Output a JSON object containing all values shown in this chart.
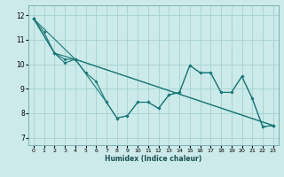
{
  "title": "",
  "xlabel": "Humidex (Indice chaleur)",
  "xlim": [
    -0.5,
    23.5
  ],
  "ylim": [
    6.7,
    12.4
  ],
  "xticks": [
    0,
    1,
    2,
    3,
    4,
    5,
    6,
    7,
    8,
    9,
    10,
    11,
    12,
    13,
    14,
    15,
    16,
    17,
    18,
    19,
    20,
    21,
    22,
    23
  ],
  "yticks": [
    7,
    8,
    9,
    10,
    11,
    12
  ],
  "bg_color": "#cceaea",
  "grid_color": "#aad4d4",
  "line_color": "#1a7878",
  "lines": [
    {
      "x": [
        0,
        1,
        2,
        3,
        4,
        5,
        6,
        7,
        8,
        9,
        10,
        11,
        12,
        13,
        14,
        15,
        16,
        17,
        18,
        19,
        20,
        21,
        22,
        23
      ],
      "y": [
        11.85,
        11.3,
        10.45,
        10.05,
        10.2,
        9.65,
        9.3,
        8.45,
        7.8,
        7.9,
        8.45,
        8.45,
        8.2,
        8.75,
        8.85,
        9.95,
        9.65,
        9.65,
        8.85,
        8.85,
        9.5,
        8.6,
        7.45,
        7.5
      ]
    },
    {
      "x": [
        0,
        2,
        3,
        4,
        7,
        8,
        9,
        10,
        11,
        12,
        13,
        14,
        15,
        16,
        17,
        18,
        19,
        20,
        21,
        22,
        23
      ],
      "y": [
        11.85,
        10.45,
        10.2,
        10.2,
        8.45,
        7.8,
        7.9,
        8.45,
        8.45,
        8.2,
        8.75,
        8.85,
        9.95,
        9.65,
        9.65,
        8.85,
        8.85,
        9.5,
        8.6,
        7.45,
        7.5
      ]
    },
    {
      "x": [
        0,
        2,
        4,
        23
      ],
      "y": [
        11.85,
        10.45,
        10.2,
        7.5
      ]
    },
    {
      "x": [
        0,
        4,
        23
      ],
      "y": [
        11.85,
        10.2,
        7.5
      ]
    }
  ]
}
